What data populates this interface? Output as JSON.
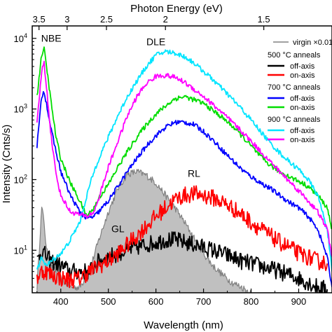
{
  "chart_data": {
    "type": "line",
    "title": "",
    "xlabel": "Wavelength (nm)",
    "ylabel": "Intensity (Cnts/s)",
    "top_xlabel": "Photon Energy (eV)",
    "xlim": [
      340,
      970
    ],
    "ylim": [
      2.5,
      15000
    ],
    "yscale": "log",
    "grid": false,
    "legend_position": "right",
    "x_ticks": [
      400,
      500,
      600,
      700,
      800,
      900
    ],
    "x_tick_labels": [
      "400",
      "500",
      "600",
      "700",
      "800",
      "900"
    ],
    "top_ticks": [
      3.5,
      3,
      2.5,
      2,
      1.5
    ],
    "top_tick_labels": [
      "3.5",
      "3",
      "2.5",
      "2",
      "1.5"
    ],
    "y_ticks": [
      10,
      100,
      1000,
      10000
    ],
    "y_tick_labels": [
      {
        "base": "10",
        "exp": "1"
      },
      {
        "base": "10",
        "exp": "2"
      },
      {
        "base": "10",
        "exp": "3"
      },
      {
        "base": "10",
        "exp": "4"
      }
    ],
    "annotations": [
      {
        "text": "NBE",
        "x": 380,
        "y": 9000
      },
      {
        "text": "DLE",
        "x": 600,
        "y": 8000
      },
      {
        "text": "RL",
        "x": 680,
        "y": 110
      },
      {
        "text": "GL",
        "x": 520,
        "y": 18
      }
    ],
    "legend": {
      "virgin_label": "virgin ×0.01",
      "groups": [
        {
          "title": "500 °C anneals",
          "entries": [
            {
              "label": "off-axis",
              "color": "#000000"
            },
            {
              "label": "on-axis",
              "color": "#ff0000"
            }
          ]
        },
        {
          "title": "700 °C anneals",
          "entries": [
            {
              "label": "off-axis",
              "color": "#0000ff"
            },
            {
              "label": "on-axis",
              "color": "#00dd00"
            }
          ]
        },
        {
          "title": "900 °C anneals",
          "entries": [
            {
              "label": "off-axis",
              "color": "#00e5ff"
            },
            {
              "label": "on-axis",
              "color": "#ff00ff"
            }
          ]
        }
      ]
    },
    "series": [
      {
        "key": "virgin",
        "color": "#808080",
        "fill": "#c0c0c0",
        "noise": 0.05,
        "x": [
          350,
          360,
          365,
          370,
          380,
          390,
          400,
          420,
          440,
          460,
          480,
          500,
          520,
          540,
          560,
          580,
          600,
          620,
          640,
          660,
          680,
          700,
          720,
          740,
          760,
          780,
          800
        ],
        "y": [
          3,
          40,
          25,
          10,
          6,
          5,
          4,
          3,
          3,
          5,
          14,
          35,
          75,
          120,
          130,
          115,
          90,
          60,
          40,
          25,
          15,
          9,
          6,
          4.5,
          3.5,
          3,
          2.5
        ]
      },
      {
        "key": "off500",
        "color": "#000000",
        "noise": 0.12,
        "x": [
          350,
          360,
          365,
          370,
          380,
          400,
          420,
          440,
          460,
          480,
          500,
          520,
          540,
          560,
          580,
          600,
          620,
          640,
          660,
          680,
          700,
          720,
          740,
          760,
          780,
          800,
          820,
          840,
          860,
          880,
          900,
          920,
          940,
          960
        ],
        "y": [
          7,
          10,
          9,
          8,
          7,
          6,
          5,
          5,
          5,
          7,
          8,
          9,
          10,
          11,
          12,
          13,
          14,
          14,
          13,
          12,
          11,
          10,
          9,
          8,
          7,
          6.5,
          6,
          5.5,
          5,
          4.5,
          4,
          3.5,
          3,
          2.8
        ]
      },
      {
        "key": "on500",
        "color": "#ff0000",
        "noise": 0.12,
        "x": [
          350,
          360,
          370,
          380,
          400,
          420,
          440,
          460,
          480,
          500,
          520,
          540,
          560,
          580,
          600,
          620,
          640,
          660,
          680,
          700,
          720,
          740,
          760,
          780,
          800,
          820,
          840,
          860,
          880,
          900,
          920,
          940,
          960
        ],
        "y": [
          4,
          5,
          5,
          4.5,
          4,
          3.8,
          4,
          5,
          6,
          7,
          9,
          12,
          16,
          22,
          30,
          40,
          52,
          60,
          63,
          60,
          55,
          48,
          40,
          32,
          25,
          20,
          16,
          13,
          11,
          9,
          8,
          7,
          6.5
        ]
      },
      {
        "key": "off700",
        "color": "#0000ff",
        "noise": 0.035,
        "x": [
          350,
          360,
          365,
          370,
          380,
          390,
          400,
          420,
          440,
          455,
          470,
          480,
          500,
          520,
          540,
          560,
          580,
          600,
          620,
          640,
          660,
          680,
          700,
          720,
          740,
          760,
          780,
          800,
          820,
          840,
          860,
          880,
          900,
          920,
          940,
          960,
          970
        ],
        "y": [
          300,
          1500,
          1800,
          1200,
          500,
          250,
          130,
          60,
          35,
          28,
          30,
          35,
          50,
          80,
          130,
          200,
          300,
          420,
          550,
          650,
          650,
          600,
          480,
          360,
          260,
          190,
          140,
          110,
          90,
          75,
          60,
          48,
          40,
          30,
          20,
          8,
          3
        ]
      },
      {
        "key": "on700",
        "color": "#00dd00",
        "noise": 0.035,
        "x": [
          350,
          360,
          365,
          370,
          380,
          390,
          400,
          420,
          440,
          455,
          470,
          480,
          500,
          520,
          540,
          560,
          580,
          600,
          620,
          640,
          660,
          680,
          700,
          720,
          740,
          760,
          780,
          800,
          820,
          840,
          860,
          880,
          900,
          920,
          940,
          960,
          970
        ],
        "y": [
          1500,
          6000,
          7000,
          4000,
          1200,
          400,
          200,
          90,
          50,
          30,
          40,
          55,
          85,
          150,
          250,
          400,
          600,
          850,
          1100,
          1400,
          1500,
          1350,
          1200,
          950,
          750,
          580,
          420,
          300,
          210,
          160,
          130,
          110,
          95,
          80,
          60,
          40,
          20
        ]
      },
      {
        "key": "off900",
        "color": "#00e5ff",
        "noise": 0.035,
        "x": [
          350,
          360,
          365,
          370,
          380,
          390,
          400,
          410,
          420,
          440,
          450,
          460,
          470,
          480,
          500,
          520,
          540,
          560,
          580,
          600,
          620,
          640,
          660,
          680,
          700,
          720,
          740,
          760,
          780,
          800,
          820,
          840,
          860,
          880,
          900,
          920,
          940,
          960,
          970
        ],
        "y": [
          5,
          8,
          7,
          6,
          7,
          8,
          9,
          11,
          14,
          25,
          45,
          80,
          130,
          200,
          400,
          800,
          1500,
          2500,
          4000,
          5800,
          6500,
          6200,
          5500,
          4500,
          3400,
          2600,
          1900,
          1400,
          1000,
          700,
          480,
          330,
          240,
          180,
          140,
          100,
          60,
          20,
          5
        ]
      },
      {
        "key": "on900",
        "color": "#ff00ff",
        "noise": 0.035,
        "x": [
          350,
          360,
          365,
          370,
          380,
          390,
          400,
          420,
          440,
          455,
          470,
          480,
          500,
          520,
          540,
          560,
          580,
          600,
          620,
          640,
          660,
          680,
          700,
          720,
          740,
          760,
          780,
          800,
          820,
          840,
          860,
          880,
          900,
          920,
          940,
          960,
          970
        ],
        "y": [
          600,
          3500,
          4500,
          2000,
          400,
          120,
          60,
          35,
          32,
          30,
          35,
          55,
          150,
          350,
          800,
          1500,
          2300,
          2900,
          3000,
          2800,
          2400,
          1900,
          1500,
          1150,
          870,
          650,
          480,
          350,
          250,
          180,
          130,
          95,
          70,
          50,
          35,
          20,
          8
        ]
      }
    ]
  }
}
